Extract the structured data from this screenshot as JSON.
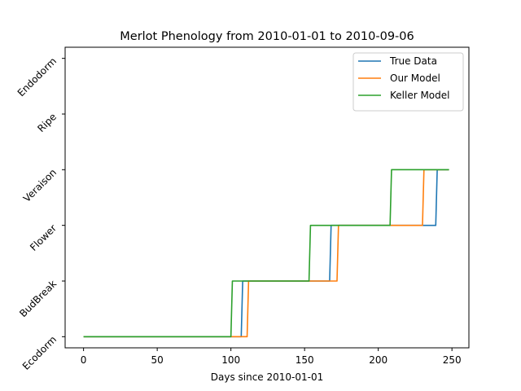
{
  "chart_data": {
    "type": "line",
    "title": "Merlot Phenology from 2010-01-01 to 2010-09-06",
    "xlabel": "Days since 2010-01-01",
    "ylabel": "",
    "xlim": [
      -12.5,
      261.5
    ],
    "ylim": [
      -0.2,
      5.2
    ],
    "xticks": [
      0,
      50,
      100,
      150,
      200,
      250
    ],
    "y_categories": [
      "Ecodorm",
      "BudBreak",
      "Flower",
      "Veraison",
      "Ripe",
      "Endodorm"
    ],
    "legend_position": "top-right",
    "grid": false,
    "series": [
      {
        "name": "True Data",
        "color": "#1f77b4",
        "points": [
          [
            0,
            0
          ],
          [
            107,
            0
          ],
          [
            108,
            1
          ],
          [
            167,
            1
          ],
          [
            168,
            2
          ],
          [
            239,
            2
          ],
          [
            240,
            3
          ],
          [
            248,
            3
          ]
        ]
      },
      {
        "name": "Our Model",
        "color": "#ff7f0e",
        "points": [
          [
            0,
            0
          ],
          [
            111,
            0
          ],
          [
            112,
            1
          ],
          [
            172,
            1
          ],
          [
            173,
            2
          ],
          [
            230,
            2
          ],
          [
            231,
            3
          ],
          [
            248,
            3
          ]
        ]
      },
      {
        "name": "Keller Model",
        "color": "#2ca02c",
        "points": [
          [
            0,
            0
          ],
          [
            100,
            0
          ],
          [
            101,
            1
          ],
          [
            153,
            1
          ],
          [
            154,
            2
          ],
          [
            208,
            2
          ],
          [
            209,
            3
          ],
          [
            248,
            3
          ]
        ]
      }
    ]
  }
}
